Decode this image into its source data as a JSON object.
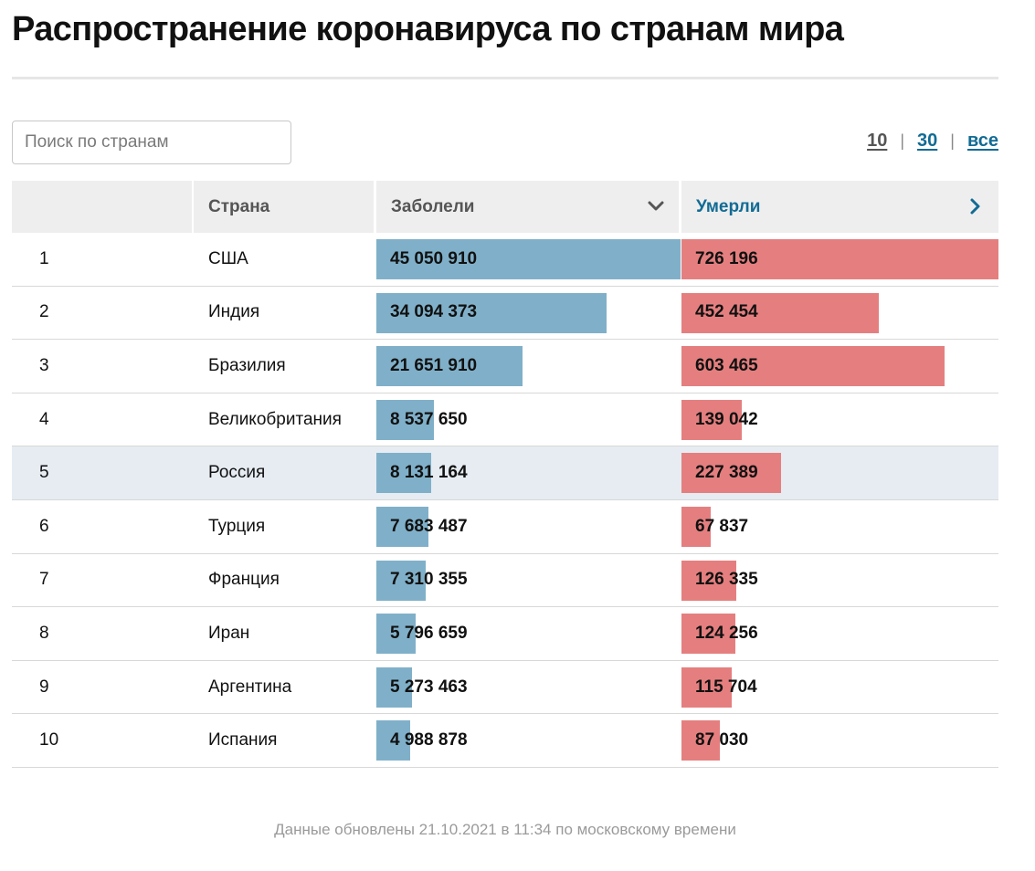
{
  "page": {
    "title": "Распространение коронавируса по странам мира",
    "search_placeholder": "Поиск по странам",
    "footer": "Данные обновлены 21.10.2021 в 11:34 по московскому времени"
  },
  "pager": {
    "options": [
      "10",
      "30",
      "все"
    ],
    "separator": "|",
    "selected": "10"
  },
  "colors": {
    "cases_bar": "#80b0c9",
    "deaths_bar": "#e57f7f",
    "link": "#126b94",
    "highlight_row": "#e6ecf2"
  },
  "icons": {
    "cases_sort": "chevron-down-icon",
    "deaths_next": "chevron-right-icon"
  },
  "chart_data": {
    "type": "table",
    "columns": [
      "",
      "Страна",
      "Заболели",
      "Умерли"
    ],
    "highlighted_row": 5,
    "rows": [
      {
        "rank": "1",
        "country": "США",
        "cases": 45050910,
        "cases_label": "45 050 910",
        "deaths": 726196,
        "deaths_label": "726 196"
      },
      {
        "rank": "2",
        "country": "Индия",
        "cases": 34094373,
        "cases_label": "34 094 373",
        "deaths": 452454,
        "deaths_label": "452 454"
      },
      {
        "rank": "3",
        "country": "Бразилия",
        "cases": 21651910,
        "cases_label": "21 651 910",
        "deaths": 603465,
        "deaths_label": "603 465"
      },
      {
        "rank": "4",
        "country": "Великобритания",
        "cases": 8537650,
        "cases_label": "8 537 650",
        "deaths": 139042,
        "deaths_label": "139 042"
      },
      {
        "rank": "5",
        "country": "Россия",
        "cases": 8131164,
        "cases_label": "8 131 164",
        "deaths": 227389,
        "deaths_label": "227 389"
      },
      {
        "rank": "6",
        "country": "Турция",
        "cases": 7683487,
        "cases_label": "7 683 487",
        "deaths": 67837,
        "deaths_label": "67 837"
      },
      {
        "rank": "7",
        "country": "Франция",
        "cases": 7310355,
        "cases_label": "7 310 355",
        "deaths": 126335,
        "deaths_label": "126 335"
      },
      {
        "rank": "8",
        "country": "Иран",
        "cases": 5796659,
        "cases_label": "5 796 659",
        "deaths": 124256,
        "deaths_label": "124 256"
      },
      {
        "rank": "9",
        "country": "Аргентина",
        "cases": 5273463,
        "cases_label": "5 273 463",
        "deaths": 115704,
        "deaths_label": "115 704"
      },
      {
        "rank": "10",
        "country": "Испания",
        "cases": 4988878,
        "cases_label": "4 988 878",
        "deaths": 87030,
        "deaths_label": "87 030"
      }
    ]
  }
}
